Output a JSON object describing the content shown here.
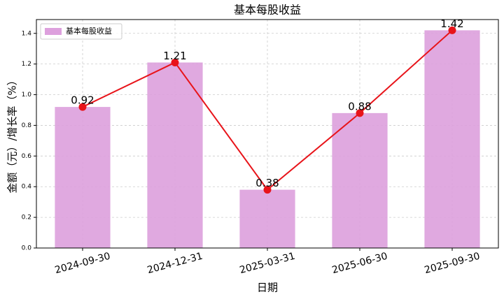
{
  "chart_data": {
    "type": "bar+line",
    "title": "基本每股收益",
    "xlabel": "日期",
    "ylabel": "金额（元）/增长率（%）",
    "categories": [
      "2024-09-30",
      "2024-12-31",
      "2025-03-31",
      "2025-06-30",
      "2025-09-30"
    ],
    "series": [
      {
        "name": "基本每股收益",
        "color": "#dda0dd",
        "line_color": "#e8141a",
        "values": [
          0.92,
          1.21,
          0.38,
          0.88,
          1.42
        ]
      }
    ],
    "ylim": [
      0,
      1.49
    ],
    "yticks": [
      {
        "value": 0,
        "label": "0.0"
      },
      0.2,
      0.4,
      0.6,
      0.8,
      {
        "value": 1,
        "label": "1.0"
      },
      1.2,
      1.4
    ],
    "grid": true,
    "legend": "upper left"
  }
}
